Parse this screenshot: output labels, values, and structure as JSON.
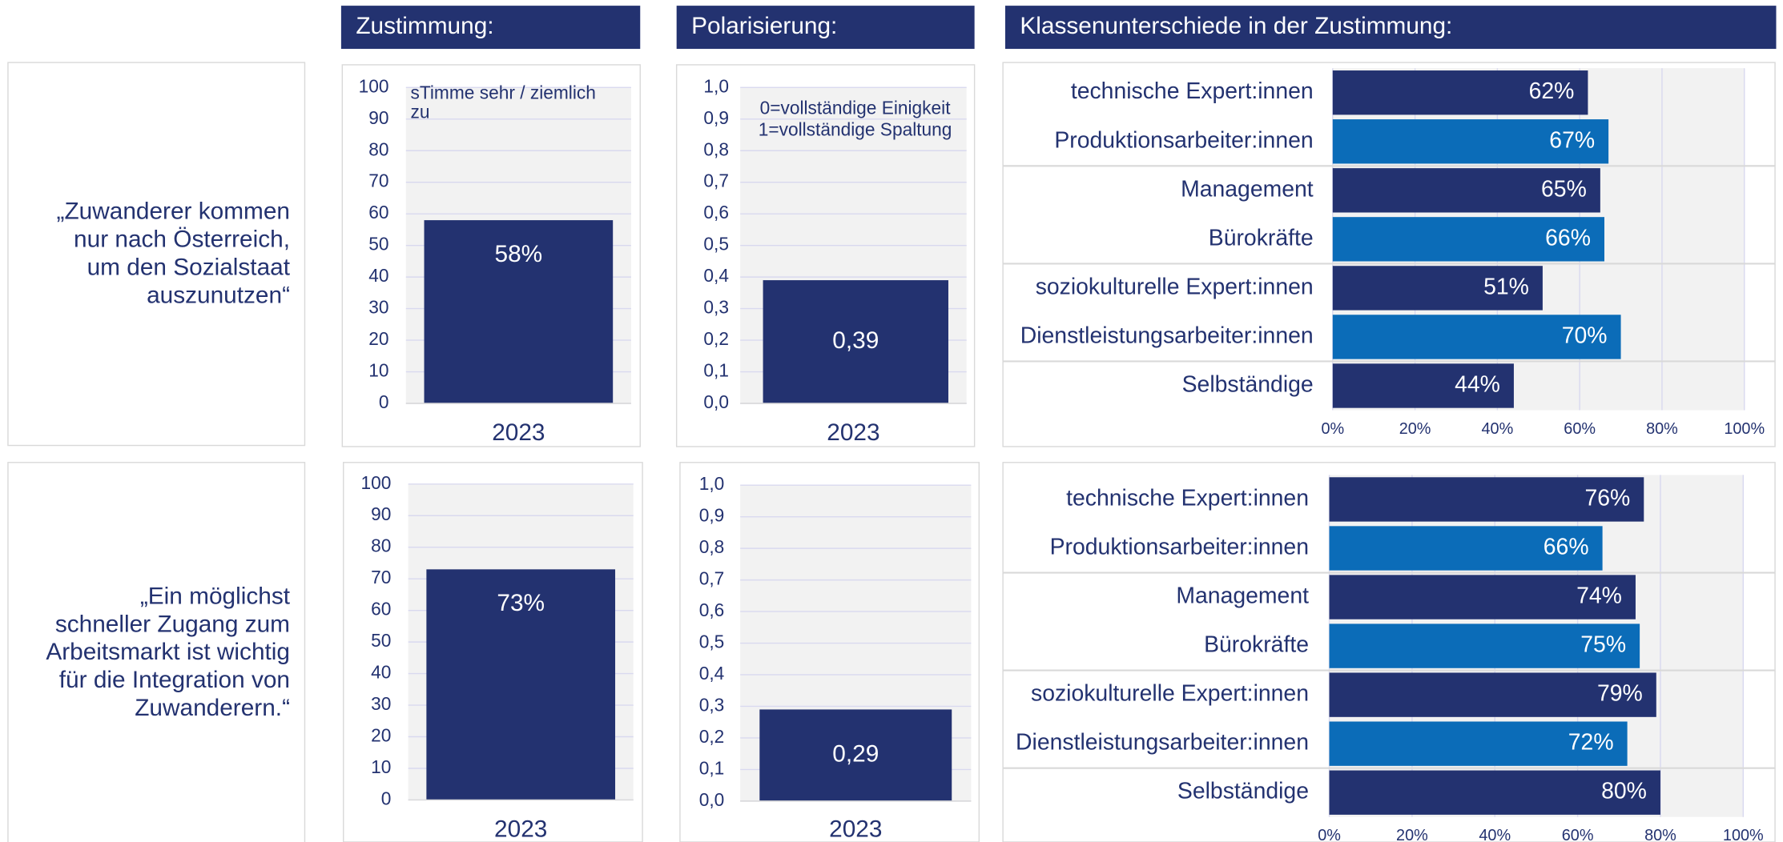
{
  "headers": [
    "Zustimmung:",
    "Polarisierung:",
    "Klassenunterschiede in der Zustimmung:"
  ],
  "statements": [
    [
      "„Zuwanderer kommen",
      "nur nach Österreich,",
      "um den Sozialstaat",
      "auszunutzen“"
    ],
    [
      "„Ein möglichst",
      "schneller Zugang zum",
      "Arbeitsmarkt ist wichtig",
      "für die Integration von",
      "Zuwanderern.“"
    ]
  ],
  "chart_data": [
    {
      "type": "bar",
      "categories": [
        "2023"
      ],
      "values": [
        58
      ],
      "value_labels": [
        "58%"
      ],
      "color": "#233270",
      "annotations": [
        "sTimme sehr / ziemlich zu"
      ],
      "ylim": [
        0,
        100
      ],
      "yticks": [
        0,
        10,
        20,
        30,
        40,
        50,
        60,
        70,
        80,
        90,
        100
      ],
      "grid": true
    },
    {
      "type": "bar",
      "categories": [
        "2023"
      ],
      "values": [
        0.39
      ],
      "value_labels": [
        "0,39"
      ],
      "color": "#233270",
      "annotations": [
        "0=vollständige Einigkeit",
        "1=vollständige Spaltung"
      ],
      "ylim": [
        0,
        1
      ],
      "yticks": [
        {
          "value": 0,
          "label": "0,0"
        },
        {
          "value": 0.1,
          "label": "0,1"
        },
        {
          "value": 0.2,
          "label": "0,2"
        },
        {
          "value": 0.3,
          "label": "0,3"
        },
        {
          "value": 0.4,
          "label": "0,4"
        },
        {
          "value": 0.5,
          "label": "0,5"
        },
        {
          "value": 0.6,
          "label": "0,6"
        },
        {
          "value": 0.7,
          "label": "0,7"
        },
        {
          "value": 0.8,
          "label": "0,8"
        },
        {
          "value": 0.9,
          "label": "0,9"
        },
        {
          "value": 1,
          "label": "1,0"
        }
      ],
      "grid": true
    },
    {
      "type": "hbar",
      "categories": [
        "technische Expert:innen",
        "Produktionsarbeiter:innen",
        "Management",
        "Bürokräfte",
        "soziokulturelle Expert:innen",
        "Dienstleistungsarbeiter:innen",
        "Selbständige"
      ],
      "values": [
        62,
        67,
        65,
        66,
        51,
        70,
        44
      ],
      "value_labels": [
        "62%",
        "67%",
        "65%",
        "66%",
        "51%",
        "70%",
        "44%"
      ],
      "colors": [
        "#233270",
        "#0b6cb8",
        "#233270",
        "#0b6cb8",
        "#233270",
        "#0b6cb8",
        "#233270"
      ],
      "xlim": [
        0,
        100
      ],
      "xticks": [
        {
          "value": 0,
          "label": "0%"
        },
        {
          "value": 20,
          "label": "20%"
        },
        {
          "value": 40,
          "label": "40%"
        },
        {
          "value": 60,
          "label": "60%"
        },
        {
          "value": 80,
          "label": "80%"
        },
        {
          "value": 100,
          "label": "100%"
        }
      ],
      "grid": true
    },
    {
      "type": "bar",
      "categories": [
        "2023"
      ],
      "values": [
        73
      ],
      "value_labels": [
        "73%"
      ],
      "color": "#233270",
      "ylim": [
        0,
        100
      ],
      "yticks": [
        0,
        10,
        20,
        30,
        40,
        50,
        60,
        70,
        80,
        90,
        100
      ],
      "grid": true
    },
    {
      "type": "bar",
      "categories": [
        "2023"
      ],
      "values": [
        0.29
      ],
      "value_labels": [
        "0,29"
      ],
      "color": "#233270",
      "ylim": [
        0,
        1
      ],
      "yticks": [
        {
          "value": 0,
          "label": "0,0"
        },
        {
          "value": 0.1,
          "label": "0,1"
        },
        {
          "value": 0.2,
          "label": "0,2"
        },
        {
          "value": 0.3,
          "label": "0,3"
        },
        {
          "value": 0.4,
          "label": "0,4"
        },
        {
          "value": 0.5,
          "label": "0,5"
        },
        {
          "value": 0.6,
          "label": "0,6"
        },
        {
          "value": 0.7,
          "label": "0,7"
        },
        {
          "value": 0.8,
          "label": "0,8"
        },
        {
          "value": 0.9,
          "label": "0,9"
        },
        {
          "value": 1,
          "label": "1,0"
        }
      ],
      "grid": true
    },
    {
      "type": "hbar",
      "categories": [
        "technische Expert:innen",
        "Produktionsarbeiter:innen",
        "Management",
        "Bürokräfte",
        "soziokulturelle Expert:innen",
        "Dienstleistungsarbeiter:innen",
        "Selbständige"
      ],
      "values": [
        76,
        66,
        74,
        75,
        79,
        72,
        80
      ],
      "value_labels": [
        "76%",
        "66%",
        "74%",
        "75%",
        "79%",
        "72%",
        "80%"
      ],
      "colors": [
        "#233270",
        "#0b6cb8",
        "#233270",
        "#0b6cb8",
        "#233270",
        "#0b6cb8",
        "#233270"
      ],
      "xlim": [
        0,
        100
      ],
      "xticks": [
        {
          "value": 0,
          "label": "0%"
        },
        {
          "value": 20,
          "label": "20%"
        },
        {
          "value": 40,
          "label": "40%"
        },
        {
          "value": 60,
          "label": "60%"
        },
        {
          "value": 80,
          "label": "80%"
        },
        {
          "value": 100,
          "label": "100%"
        }
      ],
      "grid": true
    }
  ]
}
